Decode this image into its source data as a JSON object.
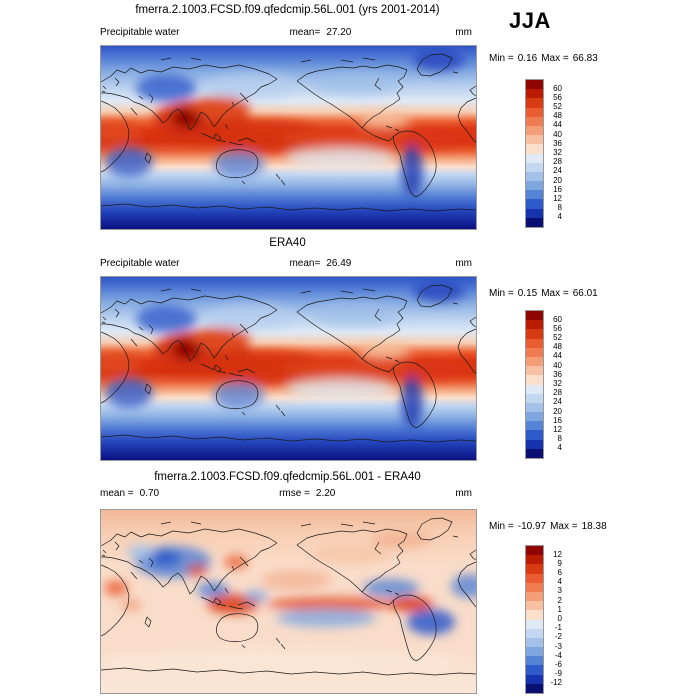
{
  "season": "JJA",
  "chart_data": {
    "type": "heatmap",
    "projection": "global lat-lon, 0-360E",
    "grid": false,
    "palette_top_to_bottom": [
      "#8e0502",
      "#b91c01",
      "#d83a12",
      "#ea5c31",
      "#f07c52",
      "#f49e78",
      "#f8c0a2",
      "#fbdfcd",
      "#e0eaf7",
      "#c4d7f0",
      "#a4c2e9",
      "#7ea7e0",
      "#5584d6",
      "#2f5bca",
      "#1634ae",
      "#0a1071"
    ],
    "panels": [
      {
        "title": "fmerra.2.1003.FCSD.f09.qfedcmip.56L.001 (yrs 2001-2014)",
        "header": {
          "left_label": "Precipitable water",
          "left_value": "",
          "center_label": "mean=",
          "center_value": "27.20",
          "right": "mm"
        },
        "minmax": {
          "min_label": "Min =",
          "min": "0.16",
          "max_label": "Max =",
          "max": "66.83"
        },
        "colorbar_ticks": [
          60,
          56,
          52,
          48,
          44,
          40,
          36,
          32,
          28,
          24,
          20,
          16,
          12,
          8,
          4
        ]
      },
      {
        "title": "ERA40",
        "header": {
          "left_label": "Precipitable water",
          "left_value": "",
          "center_label": "mean=",
          "center_value": "26.49",
          "right": "mm"
        },
        "minmax": {
          "min_label": "Min =",
          "min": "0.15",
          "max_label": "Max =",
          "max": "66.01"
        },
        "colorbar_ticks": [
          60,
          56,
          52,
          48,
          44,
          40,
          36,
          32,
          28,
          24,
          20,
          16,
          12,
          8,
          4
        ]
      },
      {
        "title": "fmerra.2.1003.FCSD.f09.qfedcmip.56L.001 - ERA40",
        "header": {
          "left_label": "mean =",
          "left_value": "0.70",
          "center_label": "rmse =",
          "center_value": "2.20",
          "right": "mm"
        },
        "minmax": {
          "min_label": "Min =",
          "min": "-10.97",
          "max_label": "Max =",
          "max": "18.38"
        },
        "colorbar_ticks": [
          12,
          9,
          6,
          4,
          3,
          2,
          1,
          0,
          -1,
          -2,
          -3,
          -4,
          -6,
          -9,
          -12
        ]
      }
    ]
  }
}
